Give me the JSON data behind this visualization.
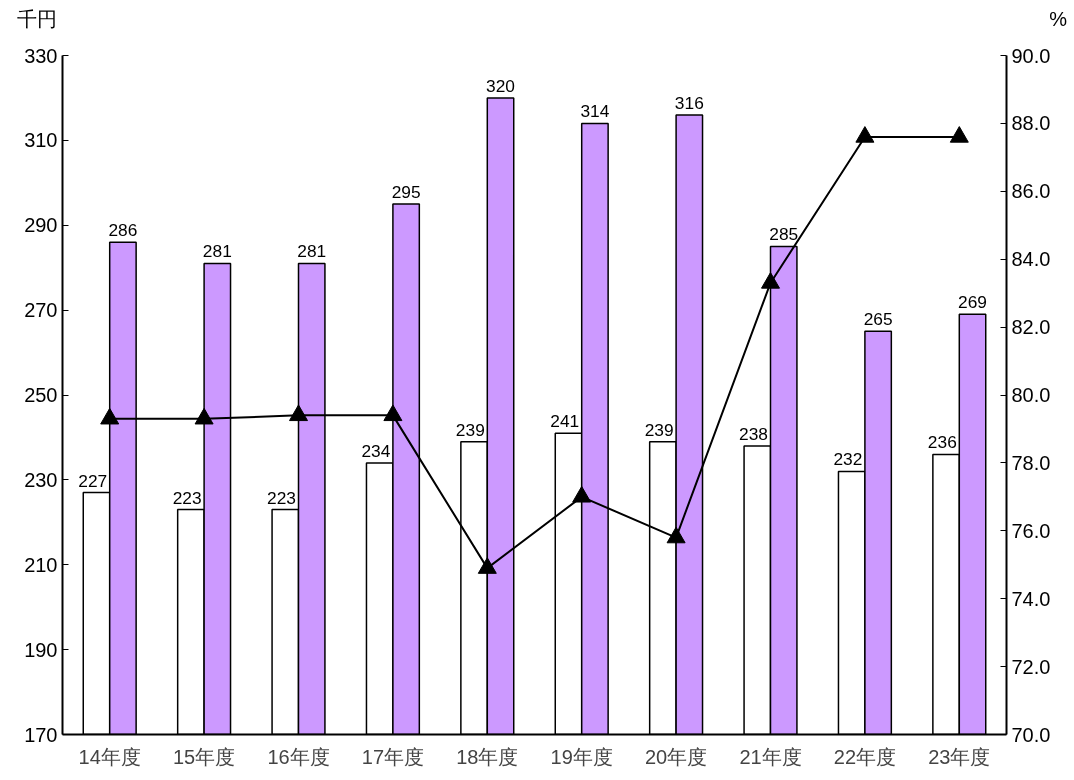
{
  "chart_data": {
    "type": "bar",
    "ylabel": "千円",
    "y2label": "%",
    "categories": [
      "14年度",
      "15年度",
      "16年度",
      "17年度",
      "18年度",
      "19年度",
      "20年度",
      "21年度",
      "22年度",
      "23年度"
    ],
    "series": [
      {
        "color": "#ffffff",
        "values": [
          227,
          223,
          223,
          234,
          239,
          241,
          239,
          238,
          232,
          236
        ],
        "value_labels": [
          "227",
          "223",
          "223",
          "234",
          "239",
          "241",
          "239",
          "238",
          "232",
          "236"
        ]
      },
      {
        "color": "#cc99ff",
        "values": [
          286,
          281,
          281,
          295,
          320,
          314,
          316,
          285,
          265,
          269
        ],
        "value_labels": [
          "286",
          "281",
          "281",
          "295",
          "320",
          "314",
          "316",
          "285",
          "265",
          "269"
        ]
      },
      {
        "type": "line",
        "axis": "y2",
        "color": "#000000",
        "marker": "triangle",
        "line_style": "solid",
        "values": [
          79.3,
          79.3,
          79.4,
          79.4,
          74.9,
          77.0,
          75.8,
          83.3,
          87.6,
          87.6
        ]
      }
    ],
    "ylim": [
      170,
      330
    ],
    "yticks": [
      170,
      190,
      210,
      230,
      250,
      270,
      290,
      310,
      330
    ],
    "y2lim": [
      70,
      90
    ],
    "y2ticks": [
      {
        "value": 70,
        "label": "70.0"
      },
      {
        "value": 72,
        "label": "72.0"
      },
      {
        "value": 74,
        "label": "74.0"
      },
      {
        "value": 76,
        "label": "76.0"
      },
      {
        "value": 78,
        "label": "78.0"
      },
      {
        "value": 80,
        "label": "80.0"
      },
      {
        "value": 82,
        "label": "82.0"
      },
      {
        "value": 84,
        "label": "84.0"
      },
      {
        "value": 86,
        "label": "86.0"
      },
      {
        "value": 88,
        "label": "88.0"
      },
      {
        "value": 90,
        "label": "90.0"
      }
    ],
    "grid": false
  }
}
